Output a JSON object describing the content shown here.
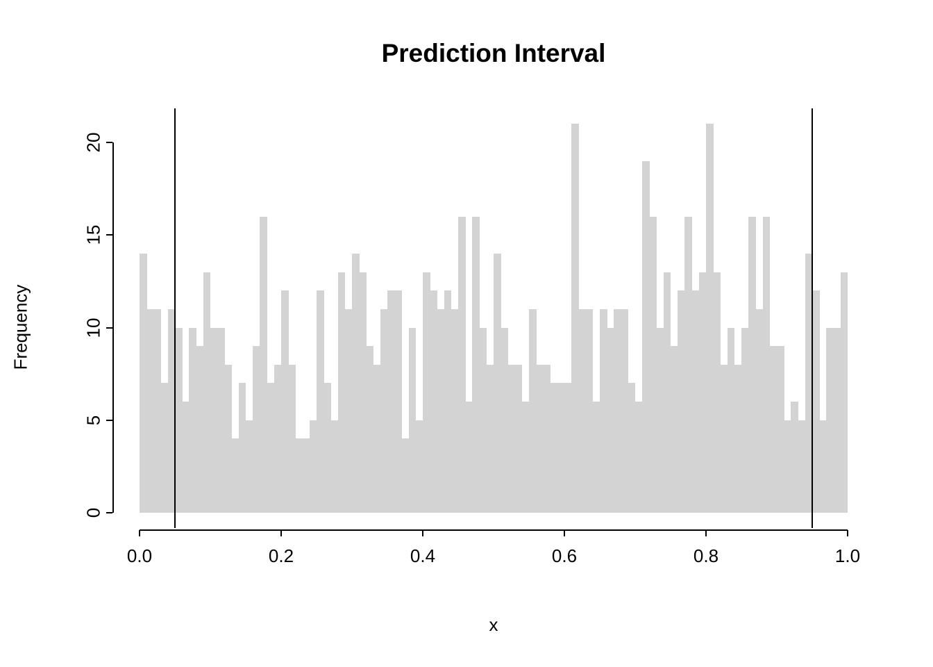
{
  "chart_data": {
    "type": "bar",
    "subtype": "histogram",
    "title": "Prediction Interval",
    "xlabel": "x",
    "ylabel": "Frequency",
    "xlim": [
      0.0,
      1.0
    ],
    "ylim": [
      0,
      20
    ],
    "grid": false,
    "legend": "none",
    "bin_start": 0.0,
    "bin_width": 0.01,
    "values": [
      14,
      11,
      11,
      7,
      11,
      10,
      6,
      10,
      9,
      13,
      10,
      10,
      8,
      4,
      7,
      5,
      9,
      16,
      7,
      8,
      12,
      8,
      4,
      4,
      5,
      12,
      7,
      5,
      13,
      11,
      14,
      13,
      9,
      8,
      11,
      12,
      12,
      4,
      10,
      5,
      13,
      12,
      11,
      12,
      11,
      16,
      6,
      16,
      10,
      8,
      14,
      10,
      8,
      8,
      6,
      11,
      8,
      8,
      7,
      7,
      7,
      21,
      11,
      11,
      6,
      11,
      10,
      11,
      11,
      7,
      6,
      19,
      16,
      10,
      13,
      9,
      12,
      16,
      12,
      13,
      21,
      13,
      8,
      10,
      8,
      10,
      16,
      11,
      16,
      9,
      9,
      5,
      6,
      5,
      14,
      12,
      5,
      10,
      10,
      13
    ],
    "x_ticks": {
      "values": [
        0.0,
        0.2,
        0.4,
        0.6,
        0.8,
        1.0
      ],
      "labels": [
        "0.0",
        "0.2",
        "0.4",
        "0.6",
        "0.8",
        "1.0"
      ]
    },
    "y_ticks": {
      "values": [
        0,
        5,
        10,
        15,
        20
      ],
      "labels": [
        "0",
        "5",
        "10",
        "15",
        "20"
      ]
    },
    "interval_lines": [
      0.05,
      0.95
    ],
    "colors": {
      "bar_fill": "#d3d3d3",
      "interval_line": "#000000",
      "axis": "#000000",
      "text": "#000000"
    }
  }
}
